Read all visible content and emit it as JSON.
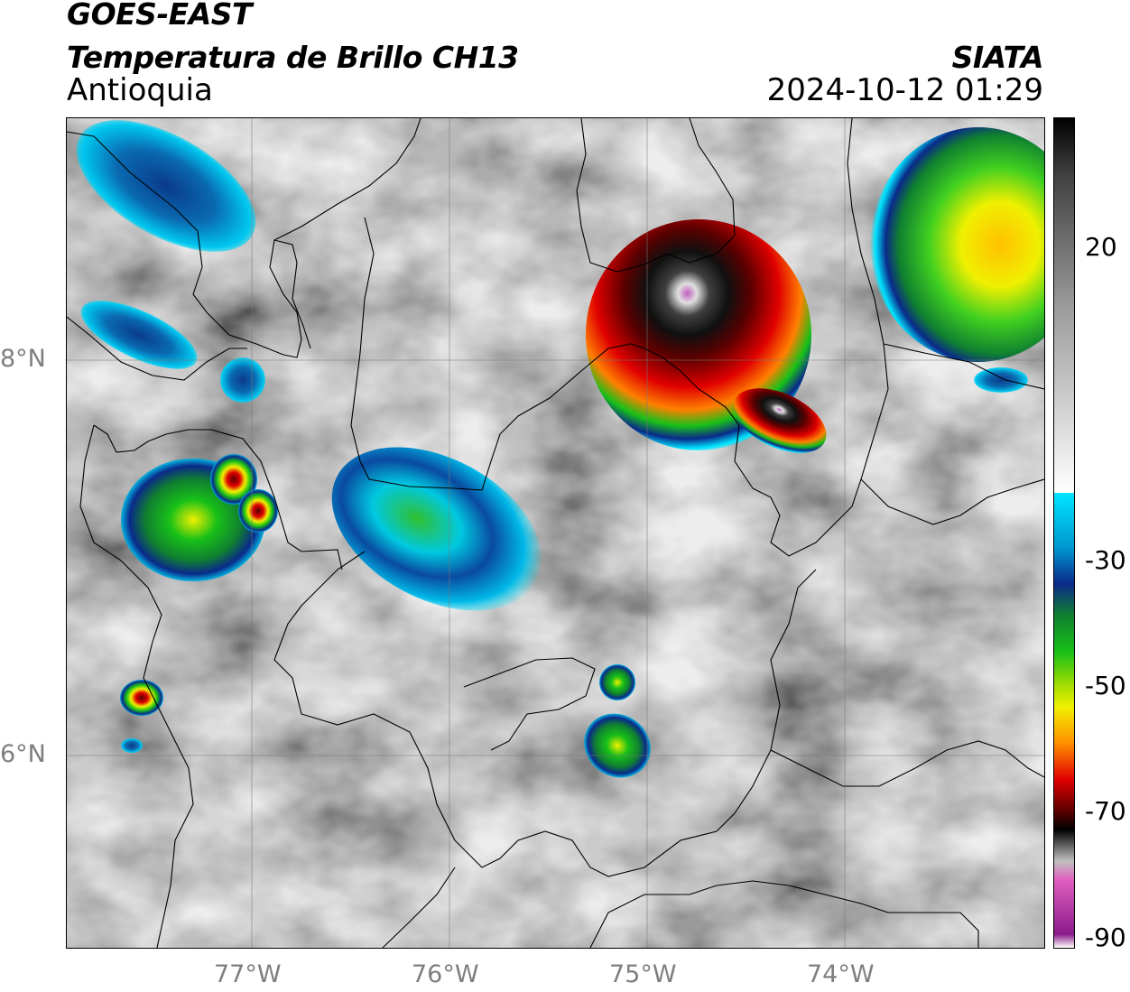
{
  "header": {
    "satellite": "GOES-EAST",
    "product": "Temperatura de Brillo CH13",
    "region": "Antioquia",
    "agency": "SIATA",
    "timestamp": "2024-10-12 01:29"
  },
  "map": {
    "x_ticks": [
      "77°W",
      "76°W",
      "75°W",
      "74°W"
    ],
    "y_ticks": [
      "8°N",
      "6°N"
    ]
  },
  "colorbar": {
    "labels": [
      "20",
      "-30",
      "-50",
      "-70",
      "-90"
    ],
    "colors": {
      "warm_low": "#ffffff",
      "warm_high": "#000000",
      "cyan": "#00e5ff",
      "blue": "#0a2a8a",
      "green": "#18c018",
      "yellow": "#f0f000",
      "orange": "#ff9000",
      "red": "#e00000",
      "dark_red": "#5a0000",
      "magenta": "#e040c0",
      "purple": "#8a1a8a"
    }
  }
}
